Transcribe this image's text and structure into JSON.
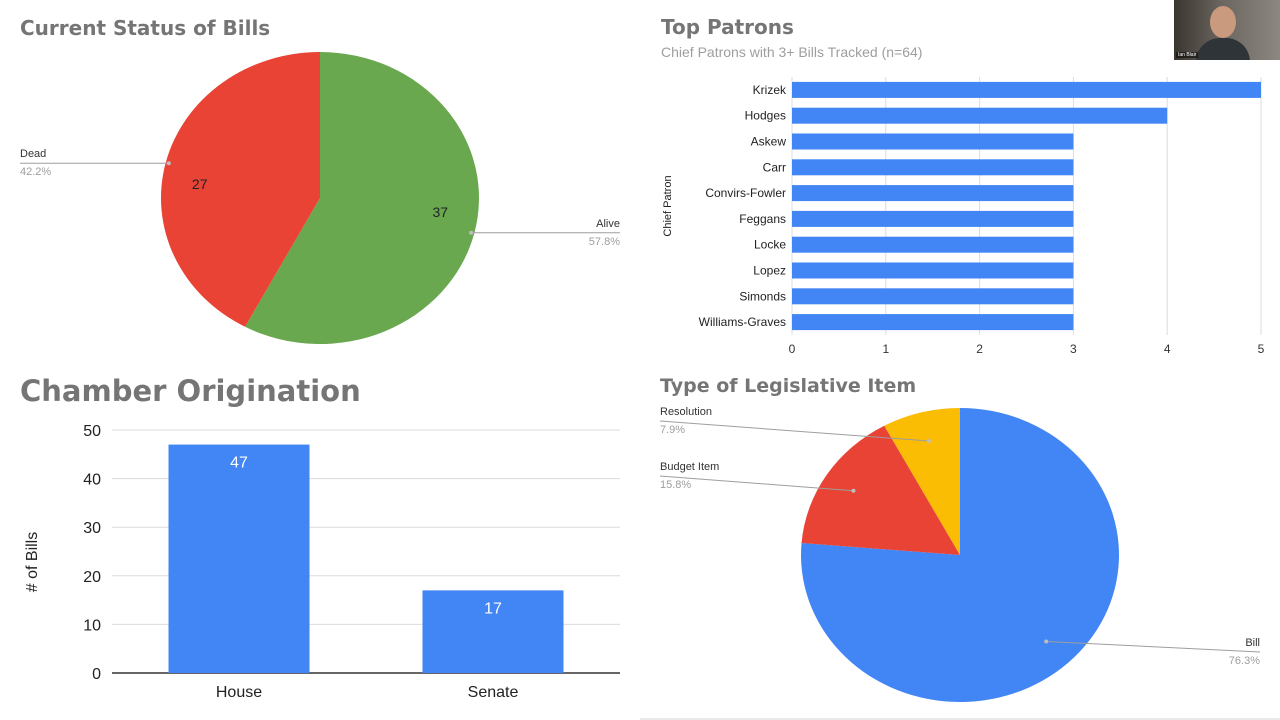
{
  "panels": {
    "status_title": "Current Status of Bills",
    "patrons_title": "Top Patrons",
    "patrons_subtitle": "Chief Patrons with 3+ Bills Tracked (n=64)",
    "chamber_title": "Chamber Origination",
    "type_title": "Type of Legislative Item"
  },
  "webcam": {
    "name": "Ian Blair"
  },
  "chart_data": [
    {
      "id": "status",
      "type": "pie",
      "title": "Current Status of Bills",
      "slices": [
        {
          "label": "Alive",
          "value": 37,
          "percent": "57.8%",
          "color": "#6aa84f"
        },
        {
          "label": "Dead",
          "value": 27,
          "percent": "42.2%",
          "color": "#e84335"
        }
      ]
    },
    {
      "id": "patrons",
      "type": "bar",
      "orientation": "horizontal",
      "title": "Top Patrons",
      "subtitle": "Chief Patrons with 3+ Bills Tracked (n=64)",
      "ylabel": "Chief Patron",
      "categories": [
        "Krizek",
        "Hodges",
        "Askew",
        "Carr",
        "Convirs-Fowler",
        "Feggans",
        "Locke",
        "Lopez",
        "Simonds",
        "Williams-Graves"
      ],
      "values": [
        5,
        4,
        3,
        3,
        3,
        3,
        3,
        3,
        3,
        3
      ],
      "xlim": [
        0,
        5
      ],
      "xticks": [
        "0",
        "1",
        "2",
        "3",
        "4",
        "5"
      ],
      "grid": true,
      "color": "#4285f4"
    },
    {
      "id": "chamber",
      "type": "bar",
      "title": "Chamber Origination",
      "ylabel": "# of Bills",
      "categories": [
        "House",
        "Senate"
      ],
      "values": [
        47,
        17
      ],
      "ylim": [
        0,
        50
      ],
      "yticks": [
        "0",
        "10",
        "20",
        "30",
        "40",
        "50"
      ],
      "grid": true,
      "color": "#4285f4"
    },
    {
      "id": "type",
      "type": "pie",
      "title": "Type of Legislative Item",
      "slices": [
        {
          "label": "Bill",
          "percent": "76.3%",
          "share": 0.763,
          "color": "#4285f4"
        },
        {
          "label": "Budget Item",
          "percent": "15.8%",
          "share": 0.158,
          "color": "#e84335"
        },
        {
          "label": "Resolution",
          "percent": "7.9%",
          "share": 0.079,
          "color": "#fbbc04"
        }
      ]
    }
  ]
}
